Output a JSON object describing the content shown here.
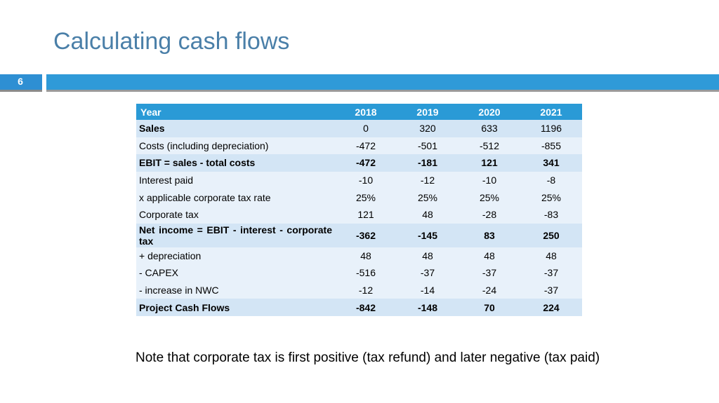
{
  "slide": {
    "title": "Calculating cash flows",
    "page_number": "6",
    "note": "Note that corporate tax is first positive (tax refund) and later negative (tax paid)"
  },
  "colors": {
    "title": "#4a7fa8",
    "bar": "#2f9ad8",
    "header_row": "#2a9ad6",
    "row_shaded": "#d3e5f5",
    "row_light": "#e8f1fa"
  },
  "table": {
    "header": [
      "Year",
      "2018",
      "2019",
      "2020",
      "2021"
    ],
    "rows": [
      {
        "label": "Sales",
        "values": [
          "0",
          "320",
          "633",
          "1196"
        ]
      },
      {
        "label": "Costs (including depreciation)",
        "values": [
          "-472",
          "-501",
          "-512",
          "-855"
        ]
      },
      {
        "label": "EBIT = sales - total costs",
        "values": [
          "-472",
          "-181",
          "121",
          "341"
        ]
      },
      {
        "label": "Interest paid",
        "values": [
          "-10",
          "-12",
          "-10",
          "-8"
        ]
      },
      {
        "label": "x applicable corporate tax rate",
        "values": [
          "25%",
          "25%",
          "25%",
          "25%"
        ]
      },
      {
        "label": "Corporate tax",
        "values": [
          "121",
          "48",
          "-28",
          "-83"
        ]
      },
      {
        "label": "Net income = EBIT - interest - corporate tax",
        "values": [
          "-362",
          "-145",
          "83",
          "250"
        ]
      },
      {
        "label": "+ depreciation",
        "values": [
          "48",
          "48",
          "48",
          "48"
        ]
      },
      {
        "label": "- CAPEX",
        "values": [
          "-516",
          "-37",
          "-37",
          "-37"
        ]
      },
      {
        "label": "- increase in NWC",
        "values": [
          "-12",
          "-14",
          "-24",
          "-37"
        ]
      },
      {
        "label": "Project Cash Flows",
        "values": [
          "-842",
          "-148",
          "70",
          "224"
        ]
      }
    ]
  }
}
